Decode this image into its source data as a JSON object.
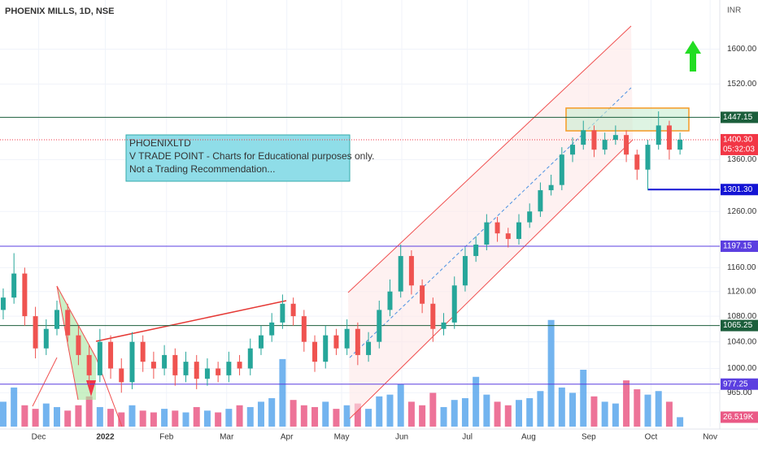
{
  "chart_data": {
    "type": "candlestick",
    "title": "PHOENIX MILLS, 1D, NSE",
    "currency": "INR",
    "note_lines": [
      "PHOENIXLTD",
      "V TRADE POINT - Charts for Educational purposes only.",
      "Not a Trading Recommendation..."
    ],
    "log_scale": true,
    "ylim": [
      918,
      1720
    ],
    "yticks": [
      {
        "value": 1600,
        "label": "1600.00"
      },
      {
        "value": 1520,
        "label": "1520.00"
      },
      {
        "value": 1360,
        "label": "1360.00"
      },
      {
        "value": 1260,
        "label": "1260.00"
      },
      {
        "value": 1160,
        "label": "1160.00"
      },
      {
        "value": 1120,
        "label": "1120.00"
      },
      {
        "value": 1080,
        "label": "1080.00"
      },
      {
        "value": 1040,
        "label": "1040.00"
      },
      {
        "value": 1000,
        "label": "1000.00"
      },
      {
        "value": 965,
        "label": "965.00"
      }
    ],
    "xlim": [
      -0.3,
      66.7
    ],
    "xticks": [
      {
        "value": 3.3,
        "label": "Dec"
      },
      {
        "value": 9.5,
        "label": "2022"
      },
      {
        "value": 15.2,
        "label": "Feb"
      },
      {
        "value": 20.8,
        "label": "Mar"
      },
      {
        "value": 26.4,
        "label": "Apr"
      },
      {
        "value": 31.5,
        "label": "May"
      },
      {
        "value": 37.1,
        "label": "Jun"
      },
      {
        "value": 43.2,
        "label": "Jul"
      },
      {
        "value": 48.9,
        "label": "Aug"
      },
      {
        "value": 54.5,
        "label": "Sep"
      },
      {
        "value": 60.3,
        "label": "Oct"
      },
      {
        "value": 65.8,
        "label": "Nov"
      }
    ],
    "up_color": "#26a69a",
    "down_color": "#ef5350",
    "open": [
      1090,
      1110,
      1150,
      1080,
      1030,
      1060,
      1090,
      1050,
      1020,
      990,
      1040,
      1000,
      980,
      1040,
      1010,
      1000,
      1020,
      990,
      1010,
      985,
      1000,
      990,
      1010,
      1000,
      1030,
      1050,
      1070,
      1100,
      1080,
      1040,
      1010,
      1050,
      1030,
      1060,
      1020,
      1040,
      1090,
      1120,
      1180,
      1130,
      1100,
      1060,
      1070,
      1130,
      1180,
      1200,
      1240,
      1220,
      1210,
      1240,
      1260,
      1300,
      1310,
      1370,
      1390,
      1420,
      1380,
      1400,
      1410,
      1370,
      1340,
      1390,
      1430,
      1380
    ],
    "high": [
      1125,
      1185,
      1160,
      1095,
      1075,
      1105,
      1100,
      1065,
      1035,
      1060,
      1050,
      1015,
      1055,
      1050,
      1025,
      1035,
      1030,
      1025,
      1020,
      1015,
      1010,
      1025,
      1020,
      1045,
      1065,
      1085,
      1115,
      1110,
      1090,
      1050,
      1065,
      1060,
      1075,
      1070,
      1055,
      1105,
      1140,
      1200,
      1190,
      1140,
      1110,
      1085,
      1145,
      1195,
      1215,
      1255,
      1250,
      1230,
      1255,
      1275,
      1315,
      1330,
      1385,
      1405,
      1440,
      1430,
      1415,
      1430,
      1420,
      1380,
      1400,
      1460,
      1440,
      1415
    ],
    "low": [
      1075,
      1100,
      1065,
      1015,
      1020,
      1050,
      1040,
      1005,
      975,
      980,
      985,
      965,
      970,
      995,
      985,
      990,
      975,
      980,
      970,
      975,
      980,
      980,
      990,
      990,
      1020,
      1040,
      1060,
      1065,
      1025,
      995,
      1000,
      1020,
      1020,
      1005,
      1010,
      1030,
      1080,
      1110,
      1115,
      1085,
      1040,
      1050,
      1060,
      1120,
      1170,
      1190,
      1205,
      1195,
      1200,
      1230,
      1250,
      1290,
      1300,
      1355,
      1380,
      1365,
      1370,
      1390,
      1355,
      1320,
      1300,
      1380,
      1360,
      1370
    ],
    "close": [
      1110,
      1150,
      1080,
      1030,
      1060,
      1090,
      1050,
      1020,
      990,
      1040,
      1000,
      980,
      1040,
      1010,
      1000,
      1020,
      990,
      1010,
      985,
      1000,
      990,
      1010,
      1000,
      1030,
      1050,
      1070,
      1100,
      1080,
      1040,
      1010,
      1050,
      1030,
      1060,
      1020,
      1040,
      1090,
      1120,
      1180,
      1130,
      1100,
      1060,
      1070,
      1130,
      1180,
      1200,
      1240,
      1220,
      1210,
      1240,
      1260,
      1300,
      1310,
      1370,
      1390,
      1420,
      1380,
      1400,
      1410,
      1370,
      1340,
      1390,
      1430,
      1380,
      1400.3
    ],
    "volume": [
      70,
      110,
      60,
      50,
      65,
      55,
      45,
      60,
      85,
      55,
      50,
      40,
      60,
      45,
      40,
      50,
      45,
      40,
      55,
      45,
      40,
      50,
      60,
      55,
      70,
      80,
      190,
      75,
      60,
      55,
      70,
      50,
      60,
      65,
      50,
      85,
      90,
      120,
      70,
      60,
      95,
      55,
      75,
      80,
      140,
      90,
      70,
      60,
      75,
      80,
      100,
      300,
      110,
      95,
      160,
      85,
      70,
      65,
      130,
      105,
      90,
      100,
      70,
      26.519
    ],
    "volume_lim": [
      0,
      1200
    ],
    "volume_up_color": "#5aa7ec",
    "volume_down_color": "#ea5a86",
    "last_volume_label": "26.519K",
    "countdown": "05:32:03",
    "levels": [
      {
        "value": 1447.15,
        "color": "#1b5e3b"
      },
      {
        "value": 1400.3,
        "label": "1400.30",
        "color": "#f23645",
        "current": true
      },
      {
        "value": 1301.3,
        "label": "1301.30",
        "color": "#1414d4",
        "from": 60
      },
      {
        "value": 1197.15,
        "color": "#5b3fe0"
      },
      {
        "value": 1065.25,
        "color": "#1b5e3b"
      },
      {
        "value": 977.25,
        "color": "#5b3fe0"
      }
    ]
  }
}
